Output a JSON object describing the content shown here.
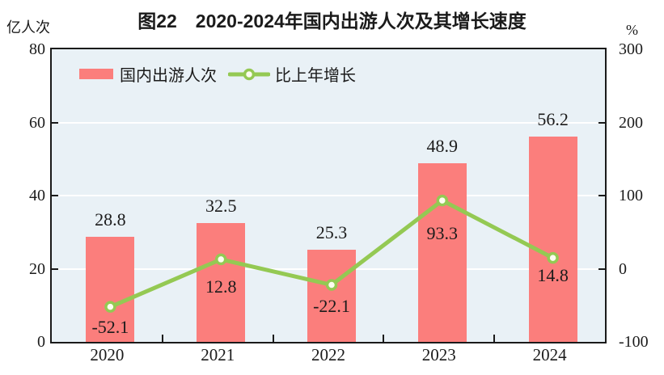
{
  "chart_data": {
    "type": "bar",
    "subtype": "bar-line combo with dual axes",
    "title": "图22　2020-2024年国内出游人次及其增长速度",
    "categories": [
      "2020",
      "2021",
      "2022",
      "2023",
      "2024"
    ],
    "series": [
      {
        "name": "国内出游人次",
        "type": "bar",
        "axis": "left",
        "unit": "亿人次",
        "values": [
          28.8,
          32.5,
          25.3,
          48.9,
          56.2
        ],
        "color": "#FB7E7C"
      },
      {
        "name": "比上年增长",
        "type": "line",
        "axis": "right",
        "unit": "%",
        "values": [
          -52.1,
          12.8,
          -22.1,
          93.3,
          14.8
        ],
        "color": "#94C953",
        "marker_fill": "#FDFDF0"
      }
    ],
    "left_axis": {
      "label": "亿人次",
      "min": 0,
      "max": 80,
      "ticks": [
        0,
        20,
        40,
        60,
        80
      ]
    },
    "right_axis": {
      "label": "%",
      "min": -100,
      "max": 300,
      "ticks": [
        -100,
        0,
        100,
        200,
        300
      ]
    },
    "legend_position": "top-left-inside",
    "grid": true,
    "colors": {
      "plot_bg": "#E9F1F6",
      "grid": "#FFFFFF",
      "border": "#1A1A1A",
      "text": "#1B1B1B"
    }
  }
}
